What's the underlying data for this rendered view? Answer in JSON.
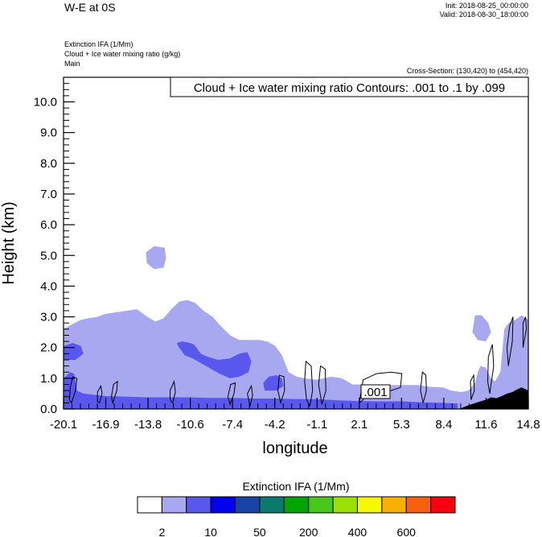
{
  "header": {
    "title": "W-E at 0S",
    "init": "Init: 2018-08-25_00:00:00",
    "valid": "Valid: 2018-08-30_18:00:00"
  },
  "descriptions": {
    "line1": "Extinction IFA   (1/Mm)",
    "line2": "Cloud + Ice water mixing ratio   (g/kg)",
    "line3": "Main",
    "cross_section": "Cross-Section: (130,420) to (454,420)"
  },
  "chart_data": {
    "type": "heatmap",
    "contour_label": "Cloud + Ice water mixing ratio Contours: .001 to .1 by .099",
    "contour_value_label": ".001",
    "xlabel": "longitude",
    "ylabel": "Height (km)",
    "x_ticks": [
      "-20.1",
      "-16.9",
      "-13.8",
      "-10.6",
      "-7.4",
      "-4.2",
      "-1.1",
      "2.1",
      "5.3",
      "8.4",
      "11.6",
      "14.8"
    ],
    "y_ticks": [
      "0.0",
      "1.0",
      "2.0",
      "3.0",
      "4.0",
      "5.0",
      "6.0",
      "7.0",
      "8.0",
      "9.0",
      "10.0"
    ],
    "xlim": [
      -20.1,
      14.8
    ],
    "ylim": [
      0,
      10.8
    ],
    "fields": [
      {
        "level": "2-10",
        "color": "#a8a8f0",
        "points": [
          [
            -20.1,
            0
          ],
          [
            -20.1,
            2.6
          ],
          [
            -19.5,
            2.75
          ],
          [
            -18.8,
            2.9
          ],
          [
            -18.3,
            2.95
          ],
          [
            -17.6,
            3.0
          ],
          [
            -16.9,
            3.1
          ],
          [
            -16.1,
            3.15
          ],
          [
            -15.3,
            3.2
          ],
          [
            -14.6,
            3.25
          ],
          [
            -13.8,
            3.0
          ],
          [
            -13.2,
            2.85
          ],
          [
            -12.6,
            2.95
          ],
          [
            -12.0,
            3.25
          ],
          [
            -11.4,
            3.5
          ],
          [
            -10.8,
            3.55
          ],
          [
            -10.2,
            3.45
          ],
          [
            -9.6,
            3.2
          ],
          [
            -8.9,
            3.0
          ],
          [
            -8.3,
            2.7
          ],
          [
            -7.6,
            2.4
          ],
          [
            -6.9,
            2.25
          ],
          [
            -6.2,
            2.25
          ],
          [
            -5.4,
            2.25
          ],
          [
            -4.8,
            2.2
          ],
          [
            -4.2,
            2.05
          ],
          [
            -3.7,
            1.75
          ],
          [
            -3.2,
            1.2
          ],
          [
            -2.6,
            1.05
          ],
          [
            -2.0,
            1.0
          ],
          [
            -1.1,
            0.95
          ],
          [
            0.0,
            1.05
          ],
          [
            0.8,
            1.0
          ],
          [
            1.6,
            0.8
          ],
          [
            2.1,
            0.8
          ],
          [
            3.0,
            0.78
          ],
          [
            4.2,
            0.78
          ],
          [
            5.3,
            0.78
          ],
          [
            6.5,
            0.78
          ],
          [
            7.4,
            0.72
          ],
          [
            8.4,
            0.7
          ],
          [
            9.0,
            0.6
          ],
          [
            9.8,
            0.55
          ],
          [
            10.3,
            0.6
          ],
          [
            10.8,
            0.85
          ],
          [
            11.0,
            1.2
          ],
          [
            11.2,
            1.4
          ],
          [
            11.6,
            1.35
          ],
          [
            12.0,
            1.0
          ],
          [
            12.3,
            0.9
          ],
          [
            12.7,
            1.2
          ],
          [
            13.0,
            2.6
          ],
          [
            13.3,
            2.8
          ],
          [
            13.8,
            2.9
          ],
          [
            14.3,
            3.05
          ],
          [
            14.8,
            2.9
          ],
          [
            14.8,
            0
          ]
        ]
      },
      {
        "level": "2-10",
        "color": "#a8a8f0",
        "points": [
          [
            -13.85,
            4.75
          ],
          [
            -13.9,
            5.1
          ],
          [
            -13.3,
            5.3
          ],
          [
            -12.5,
            5.25
          ],
          [
            -12.4,
            4.9
          ],
          [
            -12.6,
            4.6
          ],
          [
            -13.3,
            4.55
          ]
        ]
      },
      {
        "level": "2-10",
        "color": "#a8a8f0",
        "points": [
          [
            10.6,
            2.5
          ],
          [
            10.8,
            3.05
          ],
          [
            11.3,
            3.05
          ],
          [
            11.8,
            2.8
          ],
          [
            12.0,
            2.5
          ],
          [
            11.6,
            2.2
          ],
          [
            11.0,
            2.25
          ]
        ]
      },
      {
        "level": "10-50",
        "color": "#5858ee",
        "points": [
          [
            -20.1,
            0
          ],
          [
            -20.1,
            1.0
          ],
          [
            -19.6,
            1.2
          ],
          [
            -19.3,
            1.15
          ],
          [
            -19.1,
            0.6
          ],
          [
            -18.6,
            0.5
          ],
          [
            -17.6,
            0.45
          ],
          [
            -16.9,
            0.42
          ],
          [
            -15.3,
            0.4
          ],
          [
            -13.8,
            0.38
          ],
          [
            -12.3,
            0.38
          ],
          [
            -10.6,
            0.38
          ],
          [
            -9.2,
            0.36
          ],
          [
            -7.4,
            0.36
          ],
          [
            -5.7,
            0.34
          ],
          [
            -4.2,
            0.34
          ],
          [
            -2.6,
            0.32
          ],
          [
            -1.1,
            0.32
          ],
          [
            0.5,
            0.28
          ],
          [
            2.1,
            0.26
          ],
          [
            3.7,
            0.25
          ],
          [
            5.3,
            0.25
          ],
          [
            6.8,
            0.22
          ],
          [
            8.4,
            0.2
          ],
          [
            9.5,
            0.18
          ],
          [
            9.5,
            0
          ]
        ]
      },
      {
        "level": "10-50",
        "color": "#5858ee",
        "points": [
          [
            -11.5,
            2.05
          ],
          [
            -11.6,
            2.15
          ],
          [
            -11.2,
            2.2
          ],
          [
            -10.6,
            2.15
          ],
          [
            -10.3,
            2.1
          ],
          [
            -9.8,
            1.8
          ],
          [
            -9.3,
            1.7
          ],
          [
            -8.5,
            1.6
          ],
          [
            -7.6,
            1.65
          ],
          [
            -6.9,
            1.8
          ],
          [
            -6.3,
            1.85
          ],
          [
            -6.0,
            1.55
          ],
          [
            -6.2,
            1.2
          ],
          [
            -6.9,
            1.05
          ],
          [
            -7.6,
            1.0
          ],
          [
            -8.4,
            1.15
          ],
          [
            -9.0,
            1.3
          ],
          [
            -9.6,
            1.45
          ],
          [
            -10.4,
            1.65
          ],
          [
            -11.0,
            1.75
          ]
        ]
      },
      {
        "level": "10-50",
        "color": "#5858ee",
        "points": [
          [
            -5.0,
            0.6
          ],
          [
            -5.1,
            0.85
          ],
          [
            -4.7,
            1.05
          ],
          [
            -4.1,
            1.1
          ],
          [
            -3.7,
            1.0
          ],
          [
            -3.6,
            0.75
          ],
          [
            -4.1,
            0.6
          ]
        ]
      },
      {
        "level": "10-50",
        "color": "#5858ee",
        "points": [
          [
            -20.1,
            1.6
          ],
          [
            -20.1,
            2.05
          ],
          [
            -19.4,
            2.15
          ],
          [
            -18.8,
            2.05
          ],
          [
            -18.6,
            1.8
          ],
          [
            -19.2,
            1.6
          ]
        ]
      }
    ],
    "terrain": {
      "color": "#000000",
      "points": [
        [
          9.6,
          0
        ],
        [
          10.3,
          0.12
        ],
        [
          11.0,
          0.22
        ],
        [
          11.6,
          0.3
        ],
        [
          12.0,
          0.38
        ],
        [
          12.4,
          0.35
        ],
        [
          12.8,
          0.42
        ],
        [
          13.2,
          0.5
        ],
        [
          13.6,
          0.55
        ],
        [
          14.0,
          0.65
        ],
        [
          14.3,
          0.7
        ],
        [
          14.8,
          0.6
        ],
        [
          14.8,
          0
        ]
      ]
    },
    "contours": [
      [
        [
          -19.5,
          0.2
        ],
        [
          -19.2,
          0.6
        ],
        [
          -19.1,
          1.0
        ],
        [
          -19.4,
          1.05
        ],
        [
          -19.6,
          0.7
        ],
        [
          -19.65,
          0.3
        ]
      ],
      [
        [
          -17.4,
          0.2
        ],
        [
          -17.2,
          0.5
        ],
        [
          -17.3,
          0.75
        ],
        [
          -17.55,
          0.55
        ],
        [
          -17.55,
          0.25
        ]
      ],
      [
        [
          -16.4,
          0.2
        ],
        [
          -16.1,
          0.6
        ],
        [
          -16.05,
          0.9
        ],
        [
          -16.35,
          0.8
        ],
        [
          -16.5,
          0.4
        ]
      ],
      [
        [
          -11.9,
          0.2
        ],
        [
          -11.7,
          0.55
        ],
        [
          -11.8,
          0.9
        ],
        [
          -12.1,
          0.6
        ],
        [
          -12.1,
          0.3
        ]
      ],
      [
        [
          -7.6,
          0.15
        ],
        [
          -7.3,
          0.5
        ],
        [
          -7.2,
          0.85
        ],
        [
          -7.55,
          0.8
        ],
        [
          -7.75,
          0.4
        ]
      ],
      [
        [
          -6.1,
          0.1
        ],
        [
          -5.9,
          0.45
        ],
        [
          -6.0,
          0.75
        ],
        [
          -6.3,
          0.5
        ]
      ],
      [
        [
          -3.8,
          0.2
        ],
        [
          -3.5,
          0.6
        ],
        [
          -3.55,
          1.05
        ],
        [
          -3.9,
          1.1
        ],
        [
          -4.0,
          0.6
        ]
      ],
      [
        [
          -1.6,
          0.1
        ],
        [
          -1.4,
          0.6
        ],
        [
          -1.5,
          1.4
        ],
        [
          -1.9,
          1.55
        ],
        [
          -2.0,
          0.9
        ],
        [
          -1.85,
          0.3
        ]
      ],
      [
        [
          -0.7,
          0.15
        ],
        [
          -0.4,
          0.6
        ],
        [
          -0.45,
          1.3
        ],
        [
          -0.8,
          1.4
        ],
        [
          -0.95,
          0.8
        ]
      ],
      [
        [
          2.1,
          0.2
        ],
        [
          2.4,
          0.95
        ],
        [
          3.4,
          1.15
        ],
        [
          4.5,
          1.2
        ],
        [
          5.3,
          1.15
        ],
        [
          5.2,
          0.7
        ],
        [
          4.5,
          0.6
        ],
        [
          3.5,
          0.7
        ],
        [
          2.6,
          0.7
        ],
        [
          2.4,
          0.3
        ]
      ],
      [
        [
          6.9,
          0.2
        ],
        [
          7.15,
          0.6
        ],
        [
          7.1,
          1.1
        ],
        [
          6.85,
          1.2
        ],
        [
          6.7,
          0.6
        ]
      ],
      [
        [
          10.5,
          0.3
        ],
        [
          10.75,
          0.6
        ],
        [
          10.7,
          1.1
        ],
        [
          10.45,
          0.9
        ]
      ],
      [
        [
          11.9,
          0.5
        ],
        [
          12.2,
          1.4
        ],
        [
          12.1,
          2.1
        ],
        [
          11.8,
          1.7
        ],
        [
          11.75,
          0.9
        ]
      ],
      [
        [
          13.3,
          1.4
        ],
        [
          13.6,
          2.2
        ],
        [
          13.65,
          3.0
        ],
        [
          13.4,
          2.7
        ],
        [
          13.2,
          2.0
        ]
      ],
      [
        [
          14.4,
          2.0
        ],
        [
          14.65,
          2.6
        ],
        [
          14.6,
          3.0
        ],
        [
          14.4,
          2.8
        ]
      ]
    ],
    "colorbar": {
      "title": "Extinction IFA  (1/Mm)",
      "colors": [
        "#ffffff",
        "#a8a8f0",
        "#5858ee",
        "#0000ee",
        "#1844a8",
        "#0a7a6e",
        "#00a400",
        "#48c818",
        "#9ae000",
        "#f8f800",
        "#f8b000",
        "#f86010",
        "#f80010"
      ],
      "labels": [
        "2",
        "10",
        "50",
        "200",
        "400",
        "600"
      ]
    }
  }
}
